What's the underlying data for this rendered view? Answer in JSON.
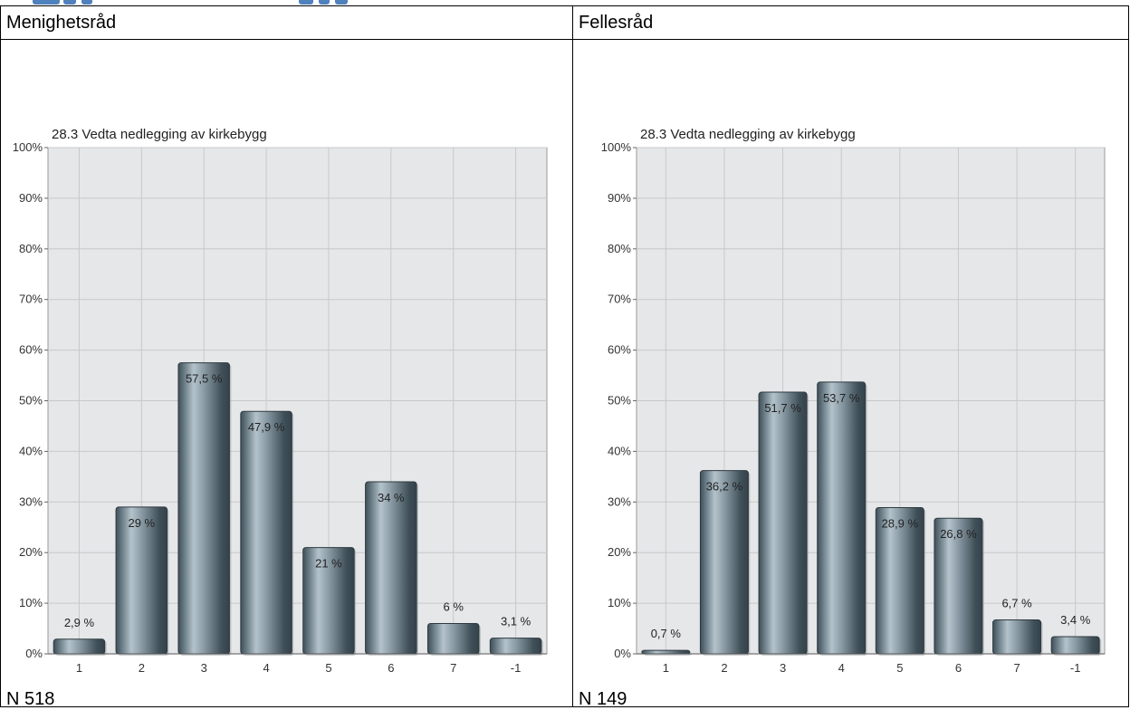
{
  "columns": [
    {
      "header": "Menighetsråd",
      "n_label": "N 518"
    },
    {
      "header": "Fellesråd",
      "n_label": "N 149"
    }
  ],
  "colors": {
    "bar_dark": "#3f4f58",
    "bar_light": "#b4c3cb",
    "plot_bg": "#e6e7e9",
    "grid": "#c8c8c8",
    "heading_accent": "#4f81bd"
  },
  "chart_data": [
    {
      "type": "bar",
      "title": "28.3 Vedta nedlegging av kirkebygg",
      "categories": [
        "1",
        "2",
        "3",
        "4",
        "5",
        "6",
        "7",
        "-1"
      ],
      "values": [
        2.9,
        29,
        57.5,
        47.9,
        21,
        34,
        6,
        3.1
      ],
      "labels": [
        "2,9 %",
        "29 %",
        "57,5 %",
        "47,9 %",
        "21 %",
        "34 %",
        "6 %",
        "3,1 %"
      ],
      "ylim": [
        0,
        100
      ],
      "yticks": [
        "0%",
        "10%",
        "20%",
        "30%",
        "40%",
        "50%",
        "60%",
        "70%",
        "80%",
        "90%",
        "100%"
      ],
      "grid": true
    },
    {
      "type": "bar",
      "title": "28.3 Vedta nedlegging av kirkebygg",
      "categories": [
        "1",
        "2",
        "3",
        "4",
        "5",
        "6",
        "7",
        "-1"
      ],
      "values": [
        0.7,
        36.2,
        51.7,
        53.7,
        28.9,
        26.8,
        6.7,
        3.4
      ],
      "labels": [
        "0,7 %",
        "36,2 %",
        "51,7 %",
        "53,7 %",
        "28,9 %",
        "26,8 %",
        "6,7 %",
        "3,4 %"
      ],
      "ylim": [
        0,
        100
      ],
      "yticks": [
        "0%",
        "10%",
        "20%",
        "30%",
        "40%",
        "50%",
        "60%",
        "70%",
        "80%",
        "90%",
        "100%"
      ],
      "grid": true
    }
  ]
}
